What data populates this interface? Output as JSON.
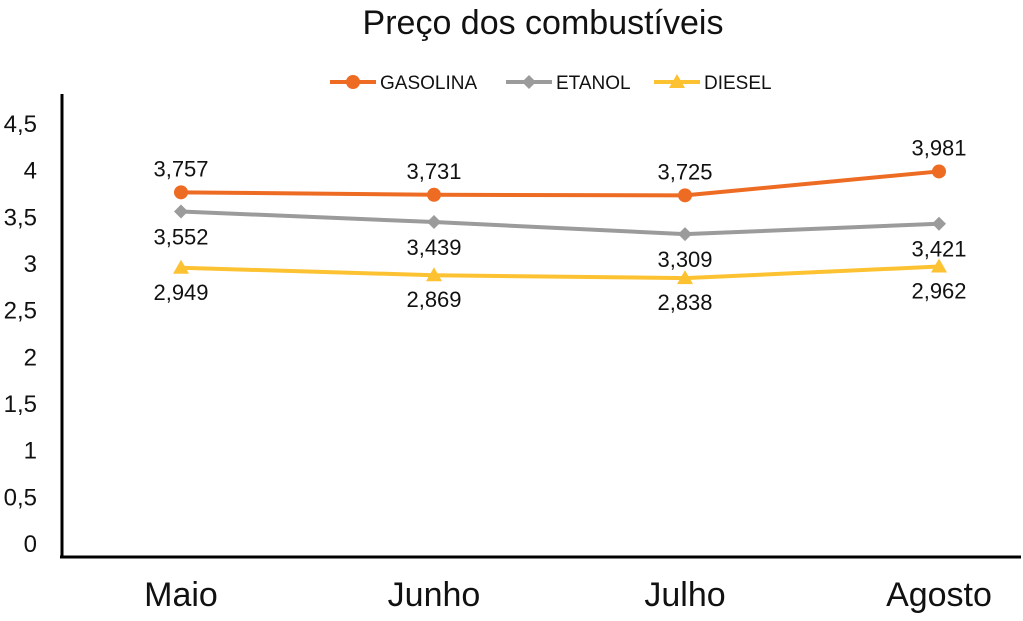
{
  "chart_data": {
    "type": "line",
    "title": "Preço dos combustíveis",
    "xlabel": "",
    "ylabel": "",
    "categories": [
      "Maio",
      "Junho",
      "Julho",
      "Agosto"
    ],
    "ylim": [
      0,
      4.5
    ],
    "yticks": [
      "0",
      "0,5",
      "1",
      "1,5",
      "2",
      "2,5",
      "3",
      "3,5",
      "4",
      "4,5"
    ],
    "grid": false,
    "legend_position": "top",
    "series": [
      {
        "name": "GASOLINA",
        "color": "#ed6b22",
        "marker": "circle",
        "values": [
          3.757,
          3.731,
          3.725,
          3.981
        ],
        "labels": [
          "3,757",
          "3,731",
          "3,725",
          "3,981"
        ]
      },
      {
        "name": "ETANOL",
        "color": "#9b9b9b",
        "marker": "diamond",
        "values": [
          3.552,
          3.439,
          3.309,
          3.421
        ],
        "labels": [
          "3,552",
          "3,439",
          "3,309",
          "3,421"
        ]
      },
      {
        "name": "DIESEL",
        "color": "#fcc232",
        "marker": "triangle",
        "values": [
          2.949,
          2.869,
          2.838,
          2.962
        ],
        "labels": [
          "2,949",
          "2,869",
          "2,838",
          "2,962"
        ]
      }
    ]
  }
}
